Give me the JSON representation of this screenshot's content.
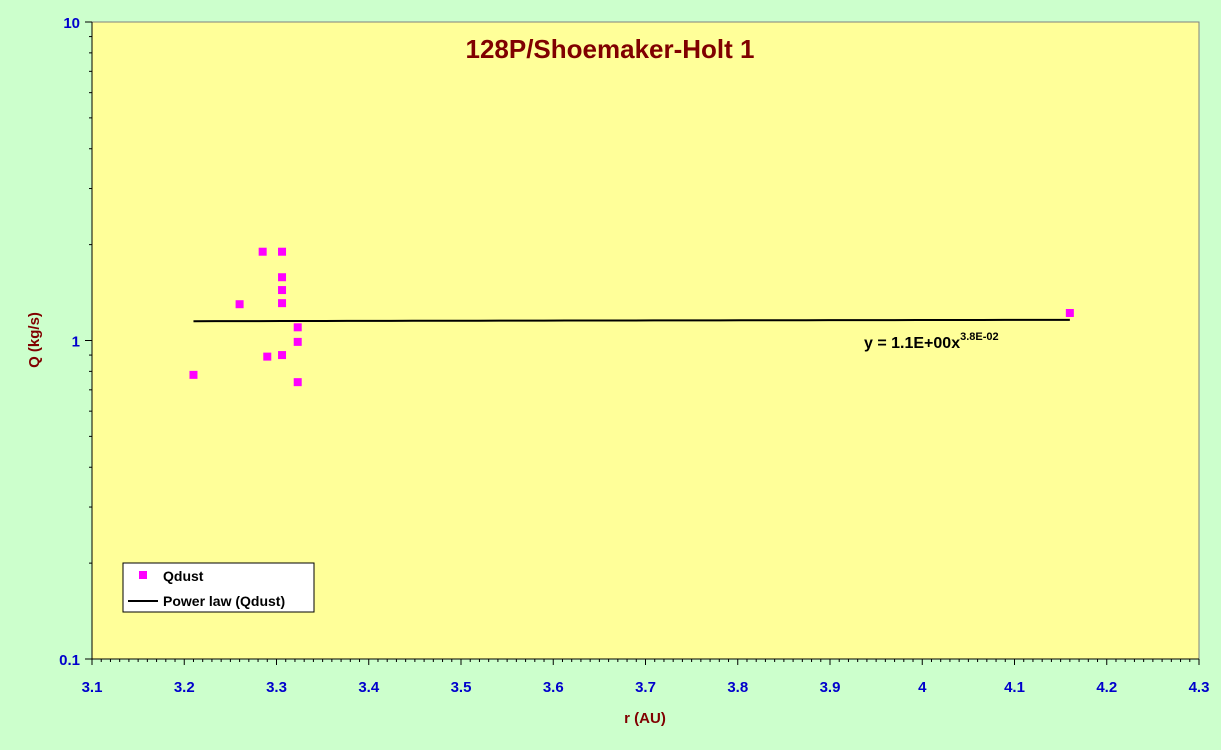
{
  "chart_data": {
    "type": "scatter",
    "title": "128P/Shoemaker-Holt 1",
    "xlabel": "r (AU)",
    "ylabel": "Q (kg/s)",
    "xlim": [
      3.1,
      4.3
    ],
    "ylim": [
      0.1,
      10
    ],
    "yscale": "log",
    "x_ticks": [
      "3.1",
      "3.2",
      "3.3",
      "3.4",
      "3.5",
      "3.6",
      "3.7",
      "3.8",
      "3.9",
      "4",
      "4.1",
      "4.2",
      "4.3"
    ],
    "y_ticks": [
      "0.1",
      "1",
      "10"
    ],
    "grid": false,
    "legend_position": "bottom-left",
    "series": [
      {
        "name": "Qdust",
        "kind": "scatter",
        "color": "#ff00ff",
        "points": [
          {
            "x": 3.21,
            "y": 0.78
          },
          {
            "x": 3.26,
            "y": 1.3
          },
          {
            "x": 3.285,
            "y": 1.9
          },
          {
            "x": 3.29,
            "y": 0.89
          },
          {
            "x": 3.306,
            "y": 1.9
          },
          {
            "x": 3.306,
            "y": 1.58
          },
          {
            "x": 3.306,
            "y": 1.44
          },
          {
            "x": 3.306,
            "y": 1.31
          },
          {
            "x": 3.306,
            "y": 0.9
          },
          {
            "x": 3.323,
            "y": 1.1
          },
          {
            "x": 3.323,
            "y": 0.99
          },
          {
            "x": 3.323,
            "y": 0.74
          },
          {
            "x": 4.16,
            "y": 1.22
          }
        ]
      },
      {
        "name": "Power law (Qdust)",
        "kind": "trendline",
        "color": "#000000",
        "coefficient": 1.1,
        "exponent": 0.038,
        "x_range": [
          3.21,
          4.16
        ]
      }
    ],
    "annotation": {
      "main": "y = 1.1E+00x",
      "superscript": "3.8E-02"
    }
  }
}
